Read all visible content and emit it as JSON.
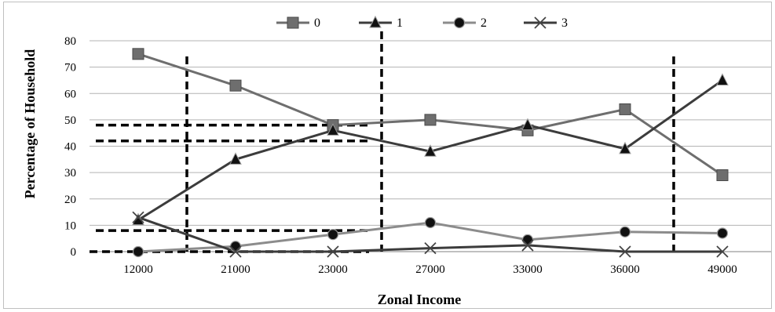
{
  "chart_data": {
    "type": "line",
    "title": "",
    "xlabel": "Zonal Income",
    "ylabel": "Percentage of Household",
    "categories": [
      "12000",
      "21000",
      "23000",
      "27000",
      "33000",
      "36000",
      "49000"
    ],
    "ylim": [
      0,
      80
    ],
    "yticks": [
      "0",
      "10",
      "20",
      "30",
      "40",
      "50",
      "60",
      "70",
      "80"
    ],
    "grid": true,
    "legend_position": "top",
    "series": [
      {
        "name": "0",
        "marker": "square",
        "color": "#6e6e6e",
        "values": [
          75,
          63,
          48,
          50,
          46,
          54,
          29
        ]
      },
      {
        "name": "1",
        "marker": "triangle",
        "color": "#3c3c3c",
        "values": [
          12,
          35,
          46,
          38,
          48,
          39,
          65
        ]
      },
      {
        "name": "2",
        "marker": "circle",
        "color": "#8c8c8c",
        "values": [
          0,
          2,
          6.5,
          11,
          4.5,
          7.5,
          7
        ]
      },
      {
        "name": "3",
        "marker": "x",
        "color": "#3c3c3c",
        "values": [
          13,
          0,
          0,
          1.3,
          2.4,
          0,
          0
        ]
      }
    ],
    "annotations": {
      "vertical_dashed_lines_between_categories": [
        [
          0,
          1
        ],
        [
          2,
          3
        ],
        [
          5,
          6
        ]
      ],
      "horizontal_dashed_lines": [
        {
          "y": 48,
          "from_category": 0,
          "to_category": 3
        },
        {
          "y": 42,
          "from_category": 0,
          "to_category": 3
        },
        {
          "y": 8,
          "from_category": 0,
          "to_category": 3
        },
        {
          "y": 0,
          "from_category": 0,
          "to_category": 3
        }
      ]
    }
  }
}
